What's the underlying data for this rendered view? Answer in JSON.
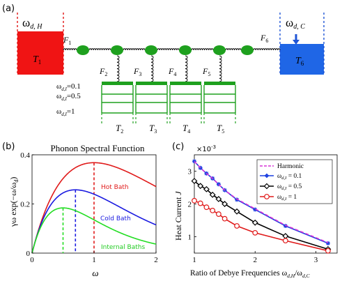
{
  "panel_a": {
    "label": "(a)",
    "hot_bath": {
      "omega": "ω",
      "omega_sub": "d, H",
      "temp": "T",
      "temp_sub": "1",
      "color": "#f01414"
    },
    "cold_bath": {
      "omega": "ω",
      "omega_sub": "d, C",
      "temp": "T",
      "temp_sub": "6",
      "color": "#1f66e6"
    },
    "springs": [
      {
        "label": "F",
        "sub": "1"
      },
      {
        "label": "F",
        "sub": "2"
      },
      {
        "label": "F",
        "sub": "3"
      },
      {
        "label": "F",
        "sub": "4"
      },
      {
        "label": "F",
        "sub": "5"
      },
      {
        "label": "F",
        "sub": "6"
      }
    ],
    "internal_levels": [
      {
        "text": "ω",
        "sub": "d,I",
        "value": "=0.1"
      },
      {
        "text": "ω",
        "sub": "d,I",
        "value": "=0.5"
      },
      {
        "text": "ω",
        "sub": "d,I",
        "value": "=1"
      }
    ],
    "internal_baths": [
      {
        "label": "T",
        "sub": "2"
      },
      {
        "label": "T",
        "sub": "3"
      },
      {
        "label": "T",
        "sub": "4"
      },
      {
        "label": "T",
        "sub": "5"
      }
    ],
    "mass_color": "#1ea01e"
  },
  "panel_b": {
    "label": "(b)",
    "title": "Phonon Spectral Function",
    "ylabel": "γω exp(−ω/ω",
    "ylabel_sub": "d",
    "ylabel_end": ")",
    "xlabel": "ω",
    "xticks": [
      "0",
      "1",
      "2"
    ],
    "yticks": [
      "0",
      "0.2",
      "0.4"
    ],
    "legend": {
      "hot": "Hot Bath",
      "cold": "Cold Bath",
      "internal": "Internal Baths"
    },
    "chart_data": {
      "type": "line",
      "x_range": [
        0,
        2
      ],
      "y_range": [
        0,
        0.4
      ],
      "series": [
        {
          "name": "Hot Bath",
          "omega_d": 1.0,
          "color": "#e01a1a"
        },
        {
          "name": "Cold Bath",
          "omega_d": 0.7,
          "color": "#1a1ae0"
        },
        {
          "name": "Internal Baths",
          "omega_d": 0.5,
          "color": "#22dd22"
        }
      ],
      "dashed_markers_x": [
        1.0,
        0.7,
        0.5
      ]
    }
  },
  "panel_c": {
    "label": "(c)",
    "exponent": "×10",
    "exponent_sup": "-3",
    "ylabel": "Heat Current ",
    "ylabel_var": "J",
    "xlabel": "Ratio of Debye Frequencies ω",
    "xlabel_sub1": "d,H",
    "xlabel_mid": "/ω",
    "xlabel_sub2": "d,C",
    "xticks": [
      "1",
      "2",
      "3"
    ],
    "yticks": [
      "1",
      "2",
      "3"
    ],
    "legend": [
      {
        "name": "Harmonic",
        "color": "#d633d6"
      },
      {
        "name": "ω",
        "sub": "d,I",
        "value": " = 0.1",
        "color": "#1a3ee0"
      },
      {
        "name": "ω",
        "sub": "d,I",
        "value": " = 0.5",
        "color": "#000000"
      },
      {
        "name": "ω",
        "sub": "d,I",
        "value": " = 1",
        "color": "#e01a1a"
      }
    ],
    "chart_data": {
      "type": "line",
      "x_range": [
        1,
        3.35
      ],
      "y_range": [
        0.5,
        3.5
      ],
      "x": [
        1.0,
        1.1,
        1.2,
        1.3,
        1.4,
        1.5,
        1.7,
        2.0,
        2.5,
        3.2
      ],
      "series": [
        {
          "name": "Harmonic",
          "values": [
            3.3,
            3.1,
            2.93,
            2.78,
            2.6,
            2.42,
            2.15,
            1.85,
            1.35,
            0.82
          ]
        },
        {
          "name": "ω_d,I = 0.1",
          "values": [
            3.3,
            3.1,
            2.93,
            2.78,
            2.6,
            2.42,
            2.13,
            1.83,
            1.33,
            0.8
          ]
        },
        {
          "name": "ω_d,I = 0.5",
          "values": [
            2.7,
            2.55,
            2.45,
            2.28,
            2.15,
            2.0,
            1.77,
            1.43,
            1.02,
            0.62
          ]
        },
        {
          "name": "ω_d,I = 1",
          "values": [
            2.1,
            2.02,
            1.9,
            1.8,
            1.69,
            1.55,
            1.33,
            1.12,
            0.88,
            0.57
          ]
        }
      ]
    }
  }
}
